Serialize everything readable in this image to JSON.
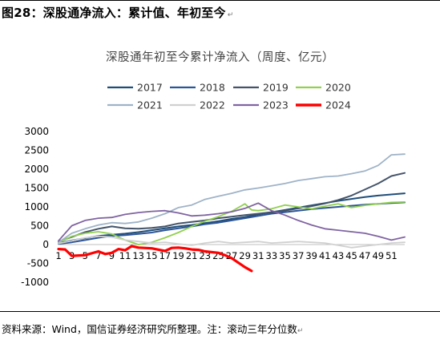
{
  "figure": {
    "title": "图28：深股通净流入：累计值、年初至今",
    "title_mark": "↵",
    "source": "资料来源：Wind，国信证券经济研究所整理。注：滚动三年分位数",
    "source_mark": "↵"
  },
  "chart_data": {
    "type": "line",
    "title": "深股通年初至今累计净流入（周度、亿元）",
    "xlabel": "",
    "ylabel": "",
    "ylim": [
      -1000,
      3000
    ],
    "yticks": [
      3000,
      2500,
      2000,
      1500,
      1000,
      500,
      0,
      -500,
      -1000
    ],
    "xlim": [
      1,
      53
    ],
    "xticks": [
      1,
      3,
      5,
      7,
      9,
      11,
      13,
      15,
      17,
      19,
      21,
      23,
      25,
      27,
      29,
      31,
      33,
      35,
      37,
      39,
      41,
      43,
      45,
      47,
      49,
      51
    ],
    "grid": false,
    "legend_position": "top",
    "series": [
      {
        "name": "2017",
        "color": "#1f4e79",
        "width": 2,
        "points": [
          [
            1,
            40
          ],
          [
            3,
            110
          ],
          [
            5,
            170
          ],
          [
            7,
            230
          ],
          [
            9,
            260
          ],
          [
            11,
            290
          ],
          [
            13,
            330
          ],
          [
            15,
            380
          ],
          [
            17,
            430
          ],
          [
            19,
            480
          ],
          [
            21,
            520
          ],
          [
            23,
            570
          ],
          [
            25,
            620
          ],
          [
            27,
            680
          ],
          [
            29,
            730
          ],
          [
            31,
            800
          ],
          [
            33,
            860
          ],
          [
            35,
            920
          ],
          [
            37,
            980
          ],
          [
            39,
            1040
          ],
          [
            41,
            1100
          ],
          [
            43,
            1160
          ],
          [
            45,
            1210
          ],
          [
            47,
            1260
          ],
          [
            49,
            1300
          ],
          [
            51,
            1330
          ],
          [
            53,
            1360
          ]
        ]
      },
      {
        "name": "2018",
        "color": "#2e5597",
        "width": 2,
        "points": [
          [
            1,
            20
          ],
          [
            3,
            60
          ],
          [
            5,
            120
          ],
          [
            7,
            180
          ],
          [
            9,
            230
          ],
          [
            11,
            250
          ],
          [
            13,
            280
          ],
          [
            15,
            320
          ],
          [
            17,
            380
          ],
          [
            19,
            430
          ],
          [
            21,
            480
          ],
          [
            23,
            540
          ],
          [
            25,
            580
          ],
          [
            27,
            640
          ],
          [
            29,
            700
          ],
          [
            31,
            760
          ],
          [
            33,
            820
          ],
          [
            35,
            860
          ],
          [
            37,
            900
          ],
          [
            39,
            940
          ],
          [
            41,
            970
          ],
          [
            43,
            1000
          ],
          [
            45,
            1030
          ],
          [
            47,
            1060
          ],
          [
            49,
            1080
          ],
          [
            51,
            1100
          ],
          [
            53,
            1120
          ]
        ]
      },
      {
        "name": "2019",
        "color": "#44546a",
        "width": 2,
        "points": [
          [
            1,
            80
          ],
          [
            3,
            200
          ],
          [
            5,
            330
          ],
          [
            7,
            420
          ],
          [
            9,
            480
          ],
          [
            11,
            430
          ],
          [
            13,
            420
          ],
          [
            15,
            440
          ],
          [
            17,
            480
          ],
          [
            19,
            560
          ],
          [
            21,
            600
          ],
          [
            23,
            640
          ],
          [
            25,
            700
          ],
          [
            27,
            740
          ],
          [
            29,
            780
          ],
          [
            31,
            820
          ],
          [
            33,
            860
          ],
          [
            35,
            900
          ],
          [
            37,
            960
          ],
          [
            39,
            1020
          ],
          [
            41,
            1090
          ],
          [
            43,
            1180
          ],
          [
            45,
            1300
          ],
          [
            47,
            1460
          ],
          [
            49,
            1620
          ],
          [
            51,
            1820
          ],
          [
            53,
            1900
          ]
        ]
      },
      {
        "name": "2020",
        "color": "#92d050",
        "width": 1.8,
        "points": [
          [
            1,
            50
          ],
          [
            3,
            220
          ],
          [
            5,
            300
          ],
          [
            7,
            340
          ],
          [
            9,
            280
          ],
          [
            11,
            120
          ],
          [
            13,
            0
          ],
          [
            15,
            60
          ],
          [
            17,
            180
          ],
          [
            19,
            320
          ],
          [
            21,
            480
          ],
          [
            23,
            620
          ],
          [
            25,
            740
          ],
          [
            27,
            880
          ],
          [
            29,
            1080
          ],
          [
            30,
            920
          ],
          [
            31,
            900
          ],
          [
            33,
            950
          ],
          [
            35,
            1050
          ],
          [
            37,
            1000
          ],
          [
            39,
            950
          ],
          [
            41,
            1020
          ],
          [
            43,
            1080
          ],
          [
            45,
            980
          ],
          [
            47,
            1040
          ],
          [
            49,
            1080
          ],
          [
            51,
            1120
          ],
          [
            53,
            1130
          ]
        ]
      },
      {
        "name": "2021",
        "color": "#9fb3c8",
        "width": 1.8,
        "points": [
          [
            1,
            60
          ],
          [
            3,
            300
          ],
          [
            5,
            420
          ],
          [
            7,
            520
          ],
          [
            9,
            580
          ],
          [
            11,
            560
          ],
          [
            13,
            600
          ],
          [
            15,
            700
          ],
          [
            17,
            820
          ],
          [
            19,
            980
          ],
          [
            21,
            1050
          ],
          [
            23,
            1200
          ],
          [
            25,
            1280
          ],
          [
            27,
            1360
          ],
          [
            29,
            1450
          ],
          [
            31,
            1500
          ],
          [
            33,
            1560
          ],
          [
            35,
            1620
          ],
          [
            37,
            1700
          ],
          [
            39,
            1750
          ],
          [
            41,
            1800
          ],
          [
            43,
            1820
          ],
          [
            45,
            1880
          ],
          [
            47,
            1950
          ],
          [
            49,
            2100
          ],
          [
            51,
            2380
          ],
          [
            53,
            2400
          ]
        ]
      },
      {
        "name": "2022",
        "color": "#d0d0d0",
        "width": 1.8,
        "points": [
          [
            1,
            30
          ],
          [
            3,
            100
          ],
          [
            5,
            180
          ],
          [
            7,
            220
          ],
          [
            9,
            200
          ],
          [
            11,
            120
          ],
          [
            13,
            80
          ],
          [
            15,
            40
          ],
          [
            17,
            60
          ],
          [
            19,
            20
          ],
          [
            21,
            -20
          ],
          [
            23,
            40
          ],
          [
            25,
            80
          ],
          [
            27,
            40
          ],
          [
            29,
            60
          ],
          [
            31,
            80
          ],
          [
            33,
            40
          ],
          [
            35,
            60
          ],
          [
            37,
            80
          ],
          [
            39,
            60
          ],
          [
            41,
            40
          ],
          [
            43,
            -20
          ],
          [
            45,
            -80
          ],
          [
            47,
            -40
          ],
          [
            49,
            0
          ],
          [
            51,
            40
          ],
          [
            53,
            60
          ]
        ]
      },
      {
        "name": "2023",
        "color": "#8064a2",
        "width": 1.8,
        "points": [
          [
            1,
            100
          ],
          [
            3,
            500
          ],
          [
            5,
            640
          ],
          [
            7,
            700
          ],
          [
            9,
            720
          ],
          [
            11,
            800
          ],
          [
            13,
            850
          ],
          [
            15,
            880
          ],
          [
            17,
            900
          ],
          [
            19,
            840
          ],
          [
            21,
            760
          ],
          [
            23,
            780
          ],
          [
            25,
            820
          ],
          [
            27,
            870
          ],
          [
            29,
            960
          ],
          [
            31,
            1100
          ],
          [
            33,
            900
          ],
          [
            35,
            780
          ],
          [
            37,
            640
          ],
          [
            39,
            520
          ],
          [
            41,
            420
          ],
          [
            43,
            380
          ],
          [
            45,
            340
          ],
          [
            47,
            300
          ],
          [
            49,
            220
          ],
          [
            51,
            120
          ],
          [
            53,
            200
          ]
        ]
      },
      {
        "name": "2024",
        "color": "#ff0000",
        "width": 3.2,
        "points": [
          [
            1,
            -120
          ],
          [
            2,
            -130
          ],
          [
            3,
            -300
          ],
          [
            5,
            -280
          ],
          [
            7,
            -180
          ],
          [
            8,
            -250
          ],
          [
            9,
            -220
          ],
          [
            10,
            -120
          ],
          [
            11,
            -150
          ],
          [
            12,
            -40
          ],
          [
            13,
            -80
          ],
          [
            15,
            -100
          ],
          [
            17,
            -170
          ],
          [
            18,
            -90
          ],
          [
            19,
            -80
          ],
          [
            20,
            -100
          ],
          [
            21,
            -130
          ],
          [
            22,
            -140
          ],
          [
            23,
            -180
          ],
          [
            25,
            -220
          ],
          [
            26,
            -280
          ],
          [
            27,
            -360
          ],
          [
            28,
            -480
          ],
          [
            29,
            -600
          ],
          [
            30,
            -700
          ]
        ]
      }
    ]
  }
}
